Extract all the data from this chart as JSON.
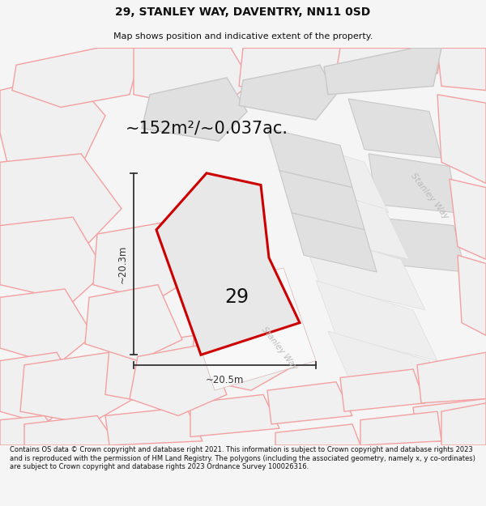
{
  "title": "29, STANLEY WAY, DAVENTRY, NN11 0SD",
  "subtitle": "Map shows position and indicative extent of the property.",
  "area_text": "~152m²/~0.037ac.",
  "label_29": "29",
  "dim_horiz": "~20.5m",
  "dim_vert": "~20.3m",
  "road_label_center": "Stanley Way",
  "road_label_right": "Stanley Way",
  "footer": "Contains OS data © Crown copyright and database right 2021. This information is subject to Crown copyright and database rights 2023 and is reproduced with the permission of HM Land Registry. The polygons (including the associated geometry, namely x, y co-ordinates) are subject to Crown copyright and database rights 2023 Ordnance Survey 100026316.",
  "bg_color": "#f5f5f5",
  "map_bg": "#ffffff",
  "plot_fill": "#e8e8e8",
  "plot_outline": "#cc0000",
  "parcel_fill": "#f0f0f0",
  "parcel_edge": "#f4a0a0",
  "gray_fill": "#e0e0e0",
  "gray_edge": "#c8c8c8",
  "dim_color": "#333333",
  "text_color": "#111111",
  "road_text_color": "#bbbbbb"
}
